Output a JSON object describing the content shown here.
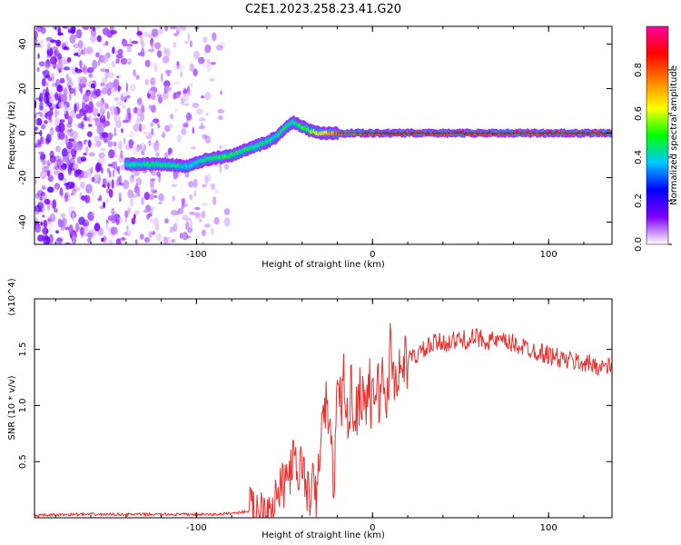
{
  "figure": {
    "title": "C2E1.2023.258.23.41.G20"
  },
  "chart_data": [
    {
      "type": "heatmap",
      "title": "C2E1.2023.258.23.41.G20",
      "xlabel": "Height of straight line (km)",
      "ylabel": "Frequency (Hz)",
      "xlim": [
        -192,
        136
      ],
      "ylim": [
        -50,
        48
      ],
      "xticks": [
        -100,
        0,
        100
      ],
      "yticks": [
        -40,
        -20,
        0,
        20,
        40
      ],
      "colorbar": {
        "label": "Normalized spectral amplitude",
        "range": [
          0,
          1
        ],
        "ticks": [
          "0.0",
          "0.2",
          "0.4",
          "0.6",
          "0.8"
        ],
        "colors": [
          "#ffffff",
          "#8000ff",
          "#0000ff",
          "#00c8ff",
          "#00ff00",
          "#ffff00",
          "#ff8000",
          "#ff0000",
          "#ff00a0"
        ]
      },
      "ridge": {
        "x": [
          -140,
          -120,
          -105,
          -95,
          -80,
          -70,
          -60,
          -55,
          -50,
          -45,
          -40,
          -35,
          -30,
          -25,
          -20,
          -10,
          0,
          10,
          50,
          100,
          136
        ],
        "y": [
          -14,
          -14,
          -15,
          -12,
          -10,
          -7,
          -4,
          -2,
          2,
          5,
          3,
          1,
          0,
          0,
          0,
          0,
          0,
          0,
          0,
          0,
          0
        ],
        "amplitude": [
          0.45,
          0.5,
          0.45,
          0.5,
          0.55,
          0.5,
          0.5,
          0.45,
          0.5,
          0.45,
          0.55,
          0.6,
          0.7,
          0.75,
          0.85,
          0.85,
          0.9,
          0.9,
          0.9,
          0.9,
          0.9
        ]
      }
    },
    {
      "type": "line",
      "xlabel": "Height of straight line (km)",
      "ylabel": "SNR (10 * v/v)",
      "y_multiplier": "(x10^4)",
      "xlim": [
        -192,
        136
      ],
      "ylim": [
        0,
        1.95
      ],
      "xticks": [
        -100,
        0,
        100
      ],
      "yticks": [
        0.5,
        1.0,
        1.5
      ],
      "ytick_labels": [
        "0.5",
        "1.0",
        "1.5"
      ],
      "line_color": "#e8302f",
      "series": [
        {
          "x": [
            -192,
            -170,
            -150,
            -130,
            -110,
            -90,
            -80,
            -70,
            -60,
            -55,
            -50,
            -45,
            -42,
            -40,
            -38,
            -36,
            -34,
            -32,
            -30,
            -28,
            -26,
            -24,
            -22,
            -20,
            -18,
            -16,
            -14,
            -12,
            -10,
            -8,
            -6,
            -4,
            -2,
            0,
            2,
            4,
            6,
            8,
            10,
            12,
            15,
            20,
            25,
            30,
            35,
            40,
            50,
            60,
            70,
            80,
            90,
            100,
            110,
            120,
            130,
            136
          ],
          "y": [
            0.02,
            0.03,
            0.03,
            0.03,
            0.03,
            0.03,
            0.04,
            0.06,
            0.1,
            0.18,
            0.3,
            0.5,
            0.35,
            0.55,
            0.25,
            0.2,
            0.3,
            0.15,
            0.6,
            0.9,
            1.05,
            0.7,
            0.3,
            1.1,
            1.0,
            1.3,
            0.7,
            1.2,
            0.9,
            1.05,
            1.15,
            1.0,
            1.2,
            0.95,
            1.25,
            1.05,
            1.3,
            1.0,
            1.5,
            1.25,
            1.3,
            1.4,
            1.45,
            1.5,
            1.55,
            1.56,
            1.58,
            1.6,
            1.57,
            1.55,
            1.5,
            1.45,
            1.4,
            1.38,
            1.35,
            1.33
          ]
        }
      ]
    }
  ]
}
